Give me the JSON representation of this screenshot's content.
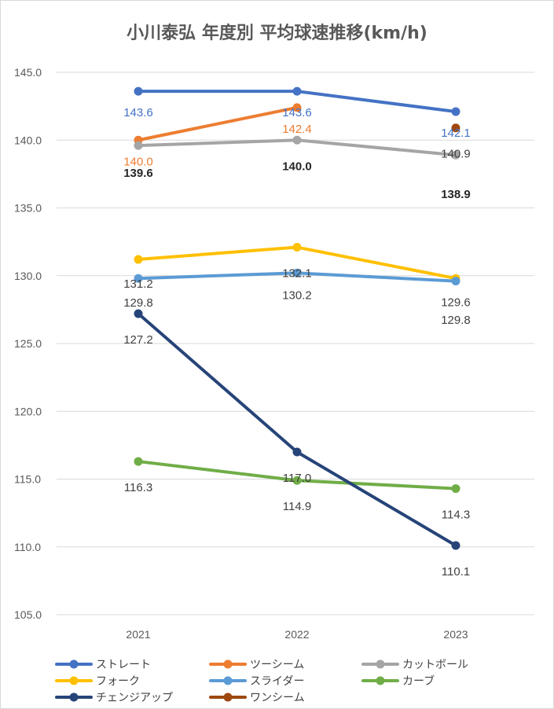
{
  "chart_data": {
    "type": "line",
    "title": "小川泰弘 年度別 平均球速推移(km/h)",
    "xlabel": "",
    "ylabel": "",
    "categories": [
      "2021",
      "2022",
      "2023"
    ],
    "ylim": [
      105,
      145
    ],
    "ytick_step": 5,
    "ytick_labels": [
      "105.0",
      "110.0",
      "115.0",
      "120.0",
      "125.0",
      "130.0",
      "135.0",
      "140.0",
      "145.0"
    ],
    "grid": true,
    "legend_position": "bottom",
    "series": [
      {
        "name": "ストレート",
        "color": "#4472C4",
        "values": [
          143.6,
          143.6,
          142.1
        ],
        "labels": [
          "143.6",
          "143.6",
          "142.1"
        ],
        "label_color": "#4472C4",
        "label_bold": false
      },
      {
        "name": "ツーシーム",
        "color": "#ED7D31",
        "values": [
          140.0,
          142.4,
          null
        ],
        "labels": [
          "140.0",
          "142.4",
          null
        ],
        "label_color": "#ED7D31",
        "label_bold": false
      },
      {
        "name": "カットボール",
        "color": "#A5A5A5",
        "values": [
          139.6,
          140.0,
          138.9
        ],
        "labels": [
          "139.6",
          "140.0",
          "138.9"
        ],
        "label_color": "#262626",
        "label_bold": true
      },
      {
        "name": "フォーク",
        "color": "#FFC000",
        "values": [
          131.2,
          132.1,
          129.8
        ],
        "labels": [
          "131.2",
          "132.1",
          "129.8"
        ],
        "label_color": "#404040",
        "label_bold": false
      },
      {
        "name": "スライダー",
        "color": "#5B9BD5",
        "values": [
          129.8,
          130.2,
          129.6
        ],
        "labels": [
          "129.8",
          "130.2",
          "129.6"
        ],
        "label_color": "#404040",
        "label_bold": false
      },
      {
        "name": "カーブ",
        "color": "#70AD47",
        "values": [
          116.3,
          114.9,
          114.3
        ],
        "labels": [
          "116.3",
          "114.9",
          "114.3"
        ],
        "label_color": "#404040",
        "label_bold": false
      },
      {
        "name": "チェンジアップ",
        "color": "#264478",
        "values": [
          127.2,
          117.0,
          110.1
        ],
        "labels": [
          "127.2",
          "117.0",
          "110.1"
        ],
        "label_color": "#404040",
        "label_bold": false
      },
      {
        "name": "ワンシーム",
        "color": "#9E480E",
        "values": [
          null,
          null,
          140.9
        ],
        "labels": [
          null,
          null,
          "140.9"
        ],
        "label_color": "#404040",
        "label_bold": false
      }
    ]
  }
}
